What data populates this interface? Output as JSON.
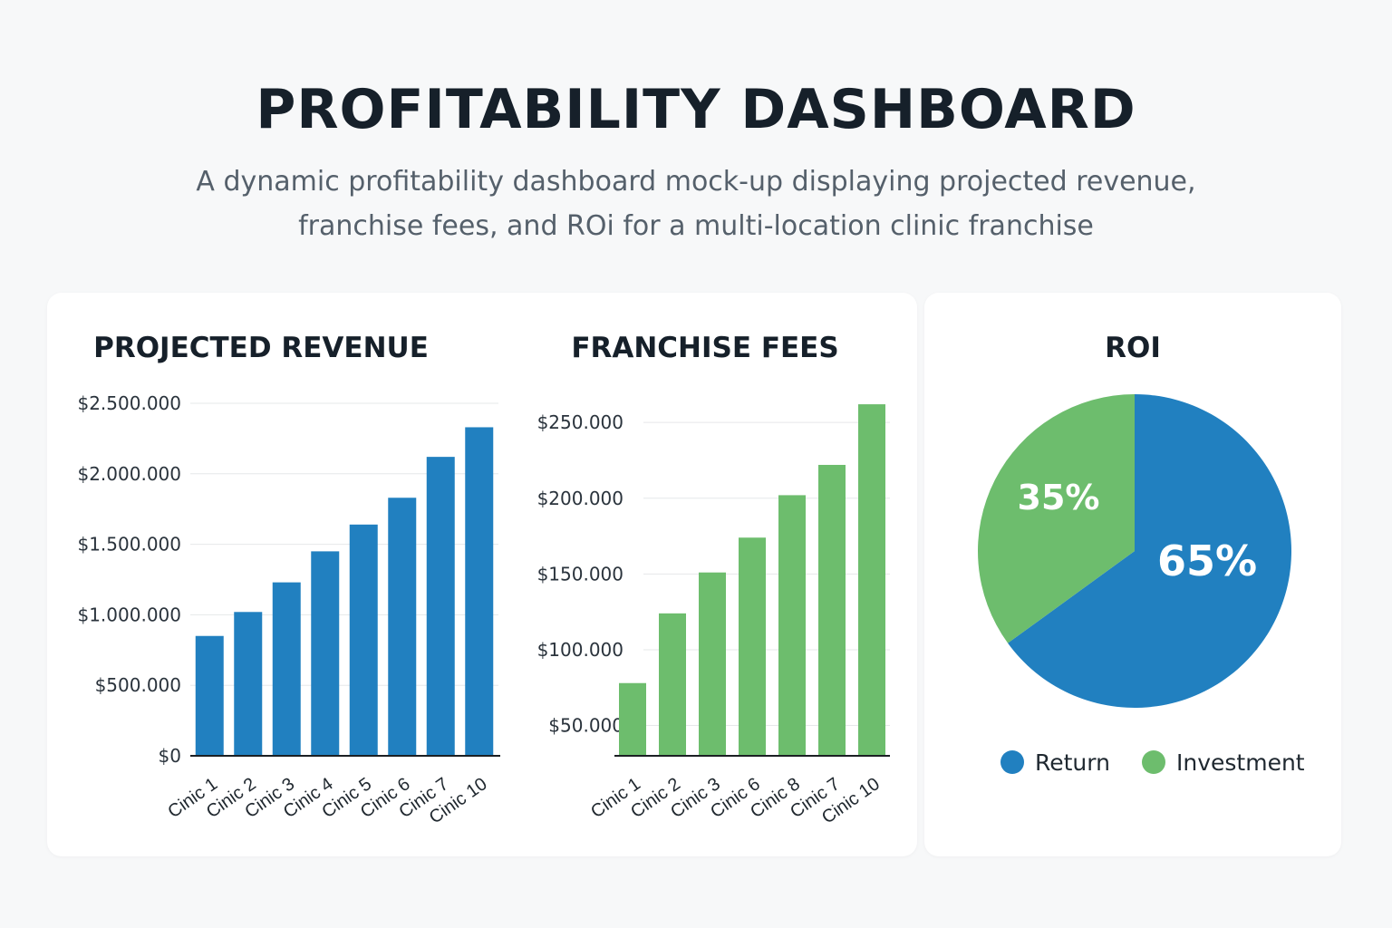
{
  "header": {
    "title": "PROFITABILITY DASHBOARD",
    "subtitle_line1": "A dynamic profitability dashboard mock-up displaying projected revenue,",
    "subtitle_line2": "franchise fees, and ROi for a multi-location clinic franchise"
  },
  "colors": {
    "blue": "#2180c0",
    "green": "#6dbd6d",
    "grid": "#e6e8ea",
    "axis": "#1b1f23"
  },
  "chart_data": [
    {
      "type": "bar",
      "title": "PROJECTED REVENUE",
      "categories": [
        "Cinic 1",
        "Cinic 2",
        "Cinic 3",
        "Cinic 4",
        "Cinic 5",
        "Cinic 6",
        "Cinic 7",
        "Cinic 10"
      ],
      "values": [
        850000,
        1020000,
        1230000,
        1450000,
        1640000,
        1830000,
        2120000,
        2330000
      ],
      "ylim": [
        0,
        2500000
      ],
      "yticks": [
        0,
        500000,
        1000000,
        1500000,
        2000000,
        2500000
      ],
      "ytick_labels": [
        "$0",
        "$500.000",
        "$1.000.000",
        "$1.500.000",
        "$2.000.000",
        "$2.500.000"
      ],
      "color": "#2180c0",
      "grid": true
    },
    {
      "type": "bar",
      "title": "FRANCHISE FEES",
      "categories": [
        "Cinic 1",
        "Cinic 2",
        "Cinic 3",
        "Cinic 6",
        "Cinic 8",
        "Cinic 7",
        "Cinic 10"
      ],
      "values": [
        78000,
        124000,
        151000,
        174000,
        202000,
        222000,
        262000
      ],
      "ylim": [
        30000,
        280000
      ],
      "yticks": [
        50000,
        100000,
        150000,
        200000,
        250000
      ],
      "ytick_labels": [
        "$50.000",
        "$100.000",
        "$150.000",
        "$200.000",
        "$250.000"
      ],
      "color": "#6dbd6d",
      "grid": true
    },
    {
      "type": "pie",
      "title": "ROI",
      "slices": [
        {
          "name": "Return",
          "value": 65,
          "label": "65%",
          "color": "#2180c0"
        },
        {
          "name": "Investment",
          "value": 35,
          "label": "35%",
          "color": "#6dbd6d"
        }
      ],
      "legend": "bottom"
    }
  ]
}
